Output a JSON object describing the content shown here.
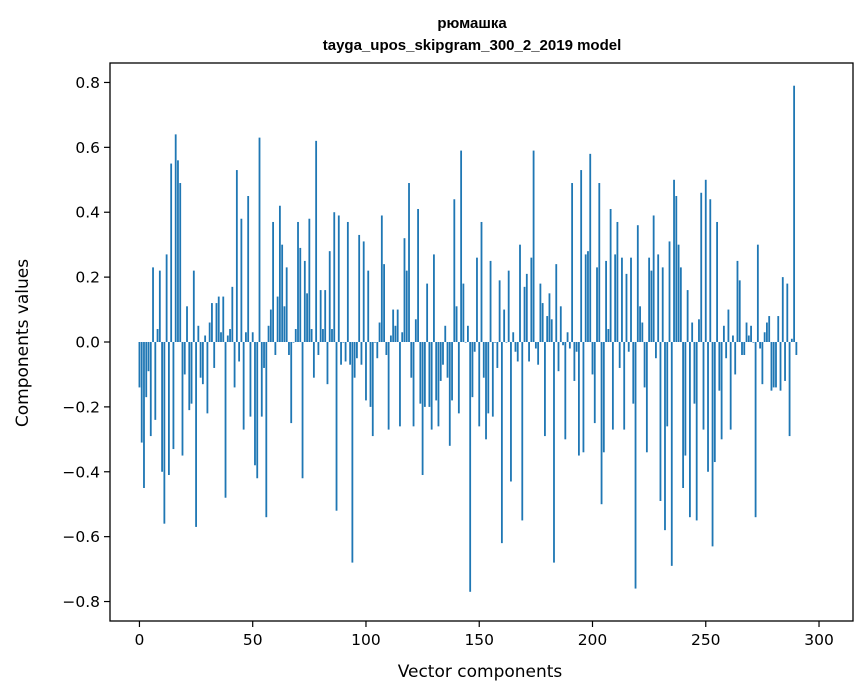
{
  "chart_data": {
    "type": "bar",
    "title": [
      "рюмашка",
      "tayga_upos_skipgram_300_2_2019 model"
    ],
    "xlabel": "Vector components",
    "ylabel": "Components values",
    "xlim": [
      -13,
      315
    ],
    "ylim": [
      -0.86,
      0.86
    ],
    "xticks": [
      0,
      50,
      100,
      150,
      200,
      250,
      300
    ],
    "yticks": [
      -0.8,
      -0.6,
      -0.4,
      -0.2,
      0.0,
      0.2,
      0.4,
      0.6,
      0.8
    ],
    "ytick_labels": [
      "−0.8",
      "−0.6",
      "−0.4",
      "−0.2",
      "0.0",
      "0.2",
      "0.4",
      "0.6",
      "0.8"
    ],
    "grid": false,
    "legend": "none",
    "bar_color": "#1f77b4",
    "x_start": 0,
    "values": [
      -0.14,
      -0.31,
      -0.45,
      -0.17,
      -0.09,
      -0.29,
      0.23,
      -0.24,
      0.04,
      0.22,
      -0.4,
      -0.56,
      0.27,
      -0.41,
      0.55,
      -0.33,
      0.64,
      0.56,
      0.49,
      -0.35,
      -0.1,
      0.11,
      -0.21,
      -0.19,
      0.22,
      -0.57,
      0.05,
      -0.11,
      -0.13,
      0.02,
      -0.22,
      0.06,
      0.12,
      -0.08,
      0.12,
      0.14,
      0.03,
      0.14,
      -0.48,
      0.02,
      0.04,
      0.17,
      -0.14,
      0.53,
      -0.06,
      0.38,
      -0.27,
      0.03,
      0.45,
      -0.23,
      0.03,
      -0.38,
      -0.42,
      0.63,
      -0.23,
      -0.08,
      -0.54,
      0.05,
      0.1,
      0.37,
      -0.04,
      0.14,
      0.42,
      0.3,
      0.11,
      0.23,
      -0.04,
      -0.25,
      0.0,
      0.04,
      0.37,
      0.29,
      -0.42,
      0.25,
      0.15,
      0.38,
      0.04,
      -0.11,
      0.62,
      -0.04,
      0.16,
      0.04,
      0.16,
      -0.13,
      0.28,
      0.04,
      0.4,
      -0.52,
      0.39,
      -0.07,
      0.0,
      -0.06,
      0.37,
      -0.07,
      -0.68,
      -0.11,
      -0.05,
      0.33,
      -0.07,
      0.31,
      -0.18,
      0.22,
      -0.2,
      -0.29,
      0.0,
      -0.05,
      0.06,
      0.39,
      0.24,
      -0.04,
      -0.27,
      0.02,
      0.1,
      0.05,
      0.1,
      -0.26,
      0.03,
      0.32,
      0.22,
      0.49,
      -0.11,
      -0.26,
      0.07,
      0.41,
      -0.19,
      -0.41,
      -0.2,
      0.18,
      -0.2,
      -0.27,
      0.27,
      -0.18,
      -0.26,
      -0.12,
      -0.07,
      0.05,
      -0.11,
      -0.32,
      -0.18,
      0.44,
      0.11,
      -0.22,
      0.59,
      0.18,
      0.0,
      0.05,
      -0.77,
      -0.17,
      -0.03,
      0.26,
      -0.26,
      0.37,
      -0.11,
      -0.3,
      -0.22,
      0.25,
      -0.23,
      0.0,
      -0.08,
      0.19,
      -0.62,
      0.1,
      0.0,
      0.22,
      -0.43,
      0.03,
      -0.03,
      -0.06,
      0.3,
      -0.55,
      0.17,
      0.21,
      -0.06,
      0.26,
      0.59,
      -0.02,
      -0.07,
      0.18,
      0.12,
      -0.29,
      0.08,
      0.15,
      0.07,
      -0.68,
      0.24,
      -0.09,
      0.11,
      -0.01,
      -0.3,
      0.03,
      -0.02,
      0.49,
      -0.12,
      -0.03,
      -0.35,
      0.53,
      -0.34,
      0.27,
      0.28,
      0.58,
      -0.1,
      -0.25,
      0.23,
      0.49,
      -0.5,
      -0.34,
      0.25,
      0.04,
      0.41,
      -0.27,
      0.27,
      0.37,
      -0.08,
      0.26,
      -0.27,
      0.21,
      -0.03,
      0.26,
      -0.19,
      -0.76,
      0.36,
      0.11,
      0.06,
      -0.14,
      -0.34,
      0.26,
      0.22,
      0.39,
      -0.05,
      0.27,
      -0.49,
      0.23,
      -0.58,
      -0.26,
      0.31,
      -0.69,
      0.5,
      0.45,
      0.3,
      0.23,
      -0.45,
      -0.35,
      0.16,
      -0.54,
      0.06,
      -0.19,
      -0.55,
      0.07,
      0.46,
      -0.27,
      0.5,
      -0.4,
      0.44,
      -0.63,
      -0.37,
      0.37,
      -0.15,
      -0.3,
      0.05,
      -0.05,
      0.1,
      -0.27,
      0.02,
      -0.1,
      0.25,
      0.19,
      -0.04,
      -0.04,
      0.06,
      0.02,
      0.05,
      0.0,
      -0.54,
      0.3,
      -0.02,
      -0.13,
      0.03,
      0.06,
      0.08,
      -0.15,
      -0.14,
      -0.14,
      0.08,
      -0.15,
      0.2,
      -0.12,
      0.18,
      -0.29,
      0.01,
      0.79,
      -0.04
    ]
  }
}
